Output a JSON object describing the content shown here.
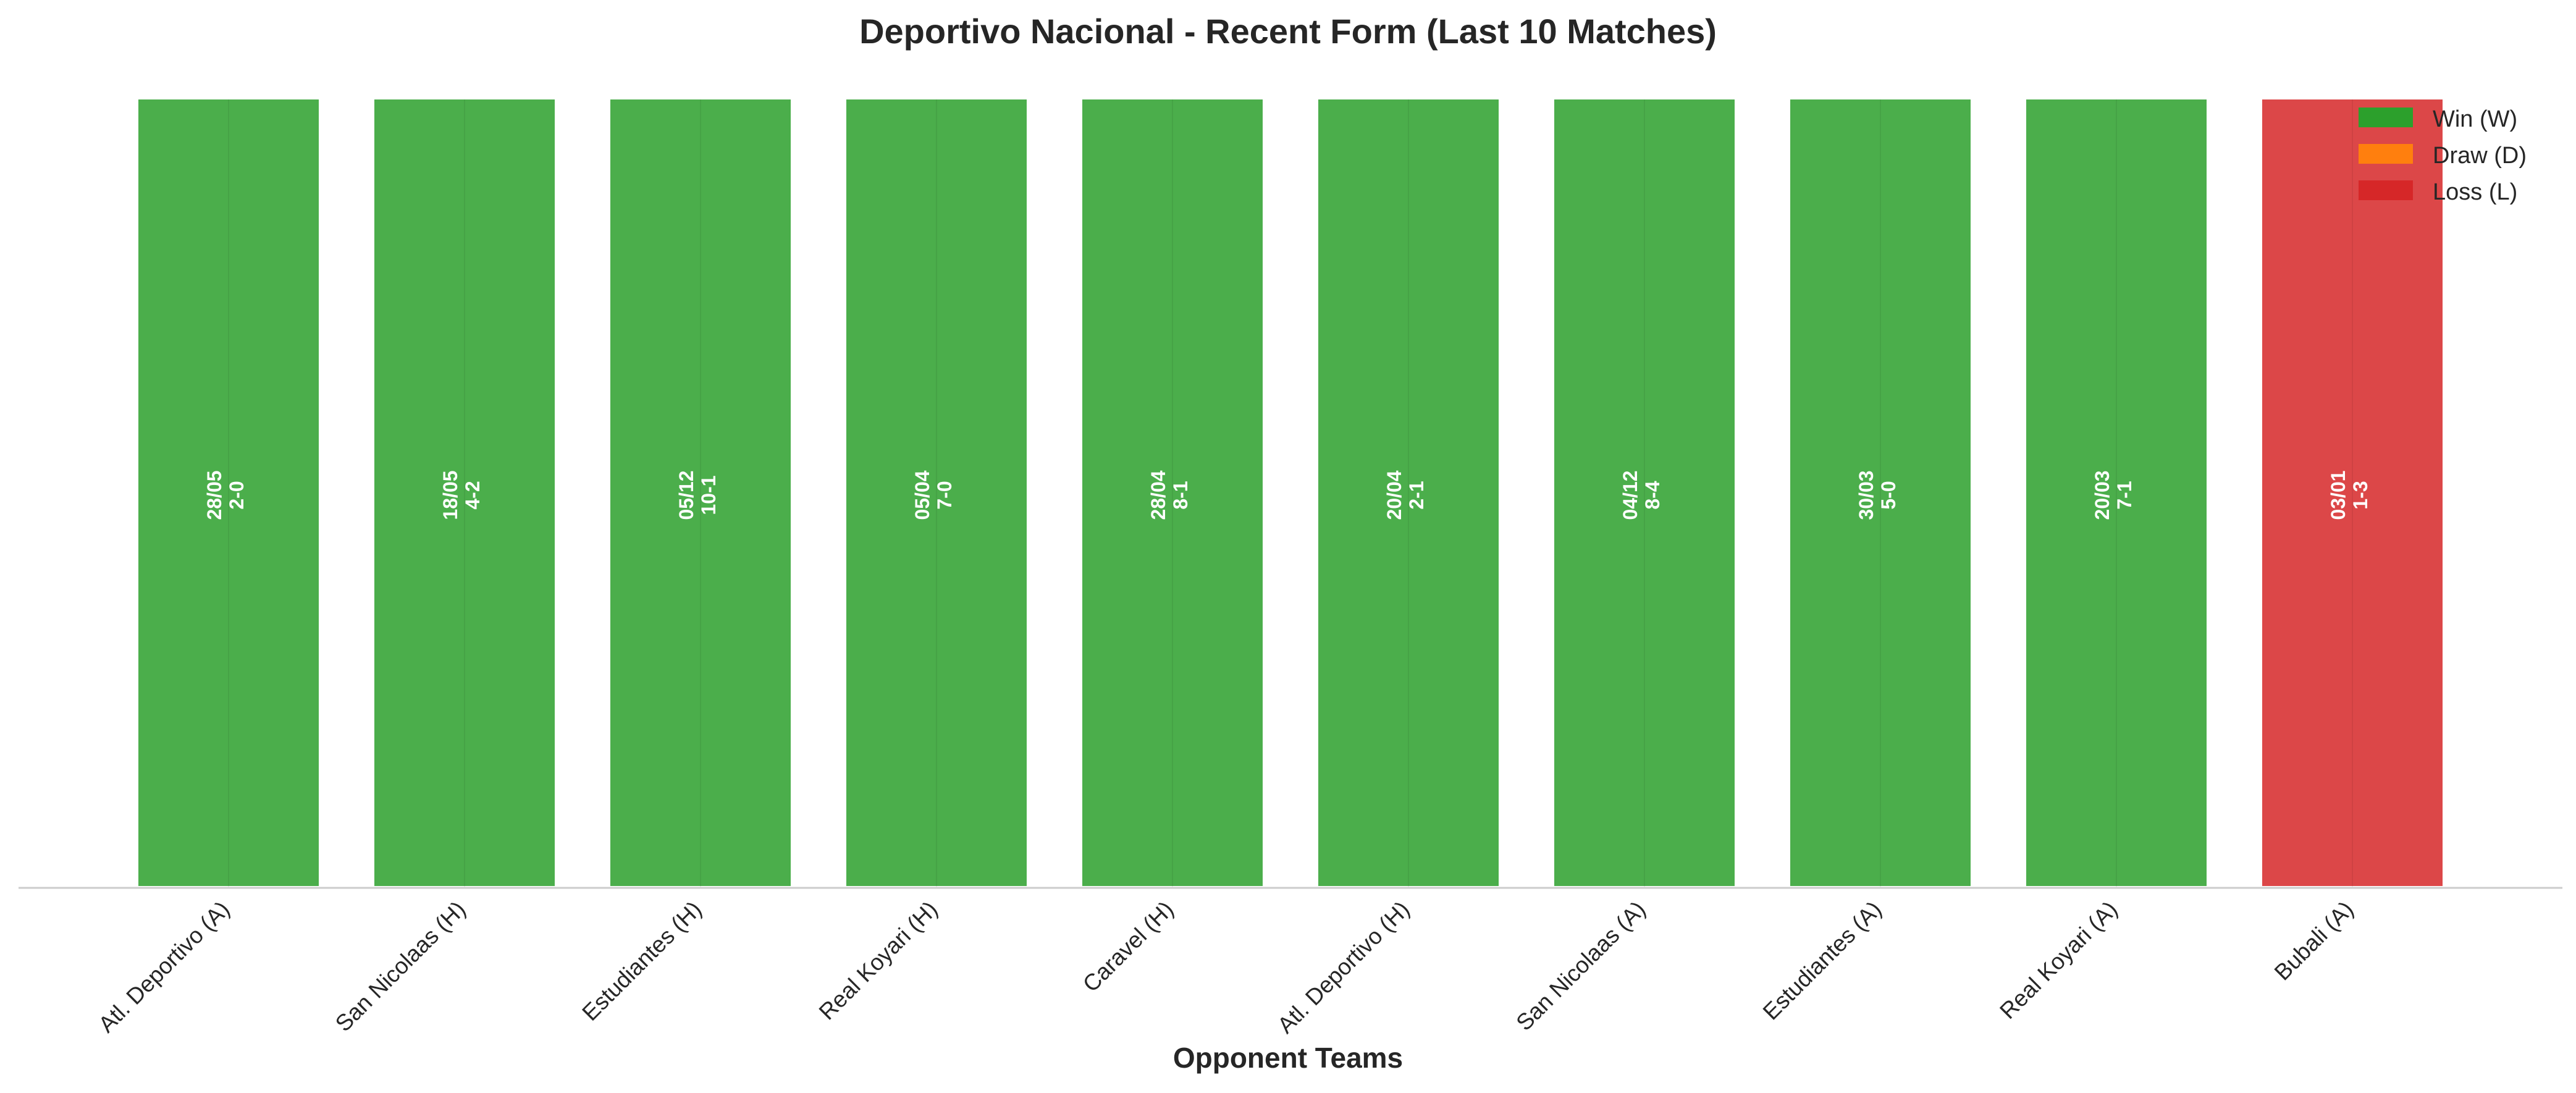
{
  "chart_data": {
    "type": "bar",
    "title": "Deportivo Nacional - Recent Form (Last 10 Matches)",
    "xlabel": "Opponent Teams",
    "ylabel": "",
    "grid": false,
    "legend_position": "top-right",
    "categories": [
      "Atl. Deportivo (A)",
      "San Nicolaas (H)",
      "Estudiantes (H)",
      "Real Koyari (H)",
      "Caravel (H)",
      "Atl. Deportivo (H)",
      "San Nicolaas (A)",
      "Estudiantes (A)",
      "Real Koyari (A)",
      "Bubali (A)"
    ],
    "values": [
      1,
      1,
      1,
      1,
      1,
      1,
      1,
      1,
      1,
      1
    ],
    "results": [
      "W",
      "W",
      "W",
      "W",
      "W",
      "W",
      "W",
      "W",
      "W",
      "L"
    ],
    "dates": [
      "28/05",
      "18/05",
      "05/12",
      "05/04",
      "28/04",
      "20/04",
      "04/12",
      "30/03",
      "20/03",
      "03/01"
    ],
    "scores": [
      "2-0",
      "4-2",
      "10-1",
      "7-0",
      "8-1",
      "2-1",
      "8-4",
      "5-0",
      "7-1",
      "1-3"
    ],
    "legend": [
      {
        "key": "W",
        "label": "Win (W)",
        "color": "#2ca02c"
      },
      {
        "key": "D",
        "label": "Draw (D)",
        "color": "#ff7f0e"
      },
      {
        "key": "L",
        "label": "Loss (L)",
        "color": "#d62728"
      }
    ],
    "ylim": [
      0,
      1
    ]
  }
}
